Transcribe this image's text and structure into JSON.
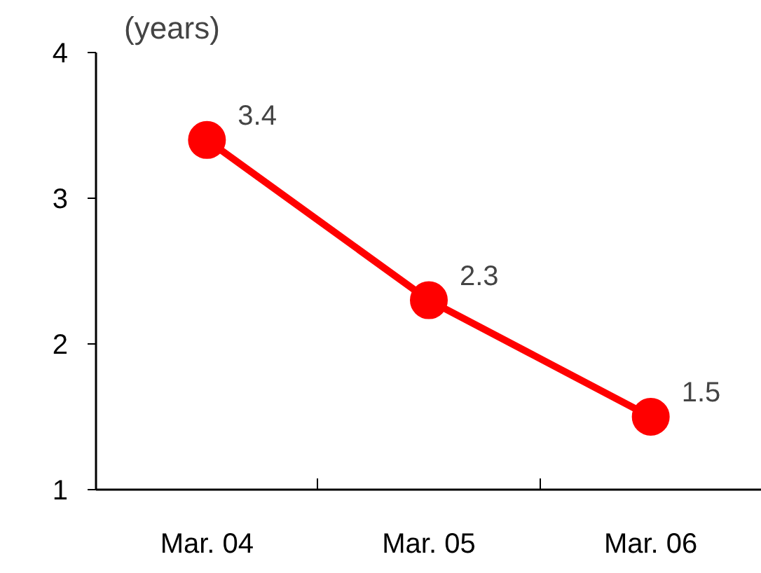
{
  "chart_data": {
    "type": "line",
    "ylabel": "(years)",
    "categories": [
      "Mar. 04",
      "Mar. 05",
      "Mar. 06"
    ],
    "series": [
      {
        "color": "#ff0000",
        "values": [
          3.4,
          2.3,
          1.5
        ]
      }
    ],
    "ylim": [
      1,
      4
    ],
    "yticks": [
      1,
      2,
      3,
      4
    ],
    "data_labels": true,
    "grid": false,
    "marker": "circle",
    "line_style": "solid"
  }
}
